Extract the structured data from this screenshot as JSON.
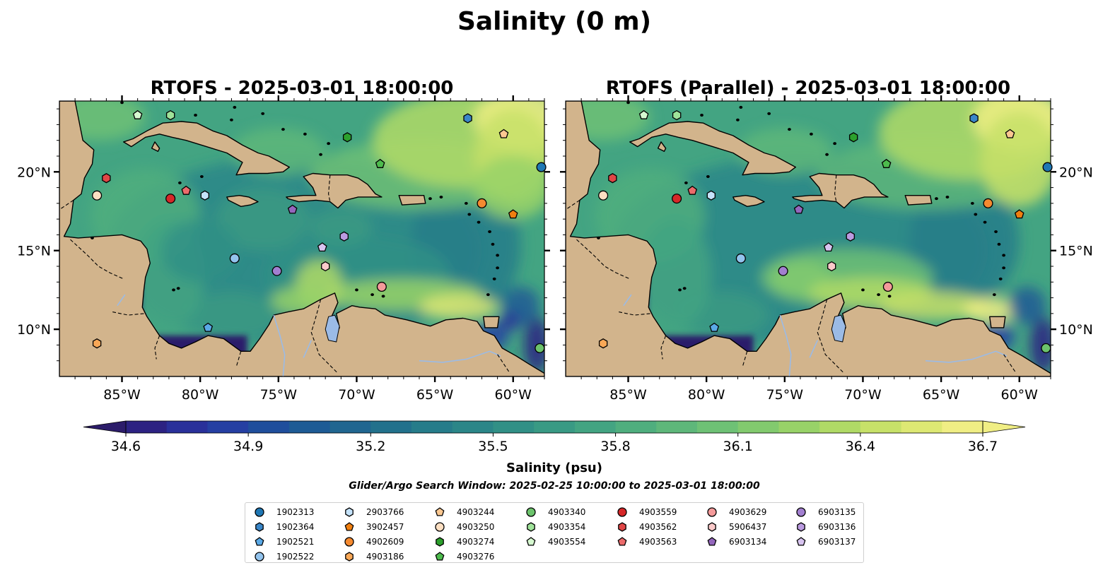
{
  "suptitle": "Salinity (0 m)",
  "panels": [
    {
      "title": "RTOFS - 2025-03-01 18:00:00",
      "lat_axis_side": "left"
    },
    {
      "title": "RTOFS (Parallel) - 2025-03-01 18:00:00",
      "lat_axis_side": "right"
    }
  ],
  "map_extent": {
    "lon": [
      -89.0,
      -58.0
    ],
    "lat": [
      7.0,
      24.5
    ]
  },
  "lon_ticks": [
    {
      "value": -85,
      "label": "85°W"
    },
    {
      "value": -80,
      "label": "80°W"
    },
    {
      "value": -75,
      "label": "75°W"
    },
    {
      "value": -70,
      "label": "70°W"
    },
    {
      "value": -65,
      "label": "65°W"
    },
    {
      "value": -60,
      "label": "60°W"
    }
  ],
  "lat_ticks": [
    {
      "value": 10,
      "label": "10°N"
    },
    {
      "value": 15,
      "label": "15°N"
    },
    {
      "value": 20,
      "label": "20°N"
    }
  ],
  "colorbar": {
    "label": "Salinity (psu)",
    "min": 34.6,
    "max": 36.7,
    "tick_labels": [
      "34.6",
      "34.9",
      "35.2",
      "35.5",
      "35.8",
      "36.1",
      "36.4",
      "36.7"
    ],
    "colors": [
      "#2c1c6a",
      "#2c2282",
      "#29309a",
      "#253fa2",
      "#1f4e9c",
      "#1e5b95",
      "#206690",
      "#22718c",
      "#267c8a",
      "#2b8688",
      "#319086",
      "#399a84",
      "#43a482",
      "#4fae7e",
      "#5eb77a",
      "#6ec175",
      "#82ca6e",
      "#98d268",
      "#b0da66",
      "#c7e169",
      "#dde873",
      "#f0ee84"
    ]
  },
  "search_window": "Glider/Argo Search Window: 2025-02-25 10:00:00 to 2025-03-01 18:00:00",
  "legend": [
    {
      "id": "1902313",
      "color": "#1f77b4",
      "marker": "circle"
    },
    {
      "id": "1902364",
      "color": "#3a86c8",
      "marker": "hexagon"
    },
    {
      "id": "1902521",
      "color": "#5aa9e6",
      "marker": "pentagon"
    },
    {
      "id": "1902522",
      "color": "#93c4ee",
      "marker": "circle"
    },
    {
      "id": "2903766",
      "color": "#c5e3fb",
      "marker": "hexagon"
    },
    {
      "id": "3902457",
      "color": "#f07f10",
      "marker": "pentagon"
    },
    {
      "id": "4902609",
      "color": "#f58a30",
      "marker": "circle"
    },
    {
      "id": "4903186",
      "color": "#f9a857",
      "marker": "hexagon"
    },
    {
      "id": "4903244",
      "color": "#fbc891",
      "marker": "pentagon"
    },
    {
      "id": "4903250",
      "color": "#fddfc2",
      "marker": "circle"
    },
    {
      "id": "4903274",
      "color": "#2ca02c",
      "marker": "hexagon"
    },
    {
      "id": "4903276",
      "color": "#4dbb4d",
      "marker": "pentagon"
    },
    {
      "id": "4903340",
      "color": "#6cc36c",
      "marker": "circle"
    },
    {
      "id": "4903354",
      "color": "#a0e39a",
      "marker": "hexagon"
    },
    {
      "id": "4903554",
      "color": "#d6f9d0",
      "marker": "pentagon"
    },
    {
      "id": "4903559",
      "color": "#d62728",
      "marker": "circle"
    },
    {
      "id": "4903562",
      "color": "#e04646",
      "marker": "hexagon"
    },
    {
      "id": "4903563",
      "color": "#ec6b6b",
      "marker": "pentagon"
    },
    {
      "id": "4903629",
      "color": "#f49a9a",
      "marker": "circle"
    },
    {
      "id": "5906437",
      "color": "#fbcaca",
      "marker": "hexagon"
    },
    {
      "id": "6903134",
      "color": "#9467bd",
      "marker": "pentagon"
    },
    {
      "id": "6903135",
      "color": "#a27fd0",
      "marker": "circle"
    },
    {
      "id": "6903136",
      "color": "#bb9be0",
      "marker": "hexagon"
    },
    {
      "id": "6903137",
      "color": "#d8c4f0",
      "marker": "pentagon"
    }
  ],
  "chart_data": {
    "type": "scatter",
    "title": "Salinity (0 m)",
    "colorbar_label": "Salinity (psu)",
    "color_range": [
      34.6,
      36.7
    ],
    "xlim": [
      -89.0,
      -58.0
    ],
    "ylim": [
      7.0,
      24.5
    ],
    "x_ticks": [
      "85°W",
      "80°W",
      "75°W",
      "70°W",
      "65°W",
      "60°W"
    ],
    "y_ticks": [
      "10°N",
      "15°N",
      "20°N"
    ],
    "grid": false,
    "series": [
      {
        "name": "1902313",
        "x": -58.2,
        "y": 20.3
      },
      {
        "name": "1902364",
        "x": -62.9,
        "y": 23.4
      },
      {
        "name": "1902521",
        "x": -79.5,
        "y": 10.1
      },
      {
        "name": "1902522",
        "x": -77.8,
        "y": 14.5
      },
      {
        "name": "2903766",
        "x": -79.7,
        "y": 18.5
      },
      {
        "name": "3902457",
        "x": -60.0,
        "y": 17.3
      },
      {
        "name": "4902609",
        "x": -62.0,
        "y": 18.0
      },
      {
        "name": "4903186",
        "x": -86.6,
        "y": 9.1
      },
      {
        "name": "4903244",
        "x": -60.6,
        "y": 22.4
      },
      {
        "name": "4903250",
        "x": -86.6,
        "y": 18.5
      },
      {
        "name": "4903274",
        "x": -70.6,
        "y": 22.2
      },
      {
        "name": "4903276",
        "x": -68.5,
        "y": 20.5
      },
      {
        "name": "4903340",
        "x": -58.3,
        "y": 8.8
      },
      {
        "name": "4903354",
        "x": -81.9,
        "y": 23.6
      },
      {
        "name": "4903554",
        "x": -84.0,
        "y": 23.6
      },
      {
        "name": "4903559",
        "x": -81.9,
        "y": 18.3
      },
      {
        "name": "4903562",
        "x": -86.0,
        "y": 19.6
      },
      {
        "name": "4903563",
        "x": -80.9,
        "y": 18.8
      },
      {
        "name": "4903629",
        "x": -68.4,
        "y": 12.7
      },
      {
        "name": "5906437",
        "x": -72.0,
        "y": 14.0
      },
      {
        "name": "6903134",
        "x": -74.1,
        "y": 17.6
      },
      {
        "name": "6903135",
        "x": -75.1,
        "y": 13.7
      },
      {
        "name": "6903136",
        "x": -70.8,
        "y": 15.9
      },
      {
        "name": "6903137",
        "x": -72.2,
        "y": 15.2
      }
    ]
  }
}
